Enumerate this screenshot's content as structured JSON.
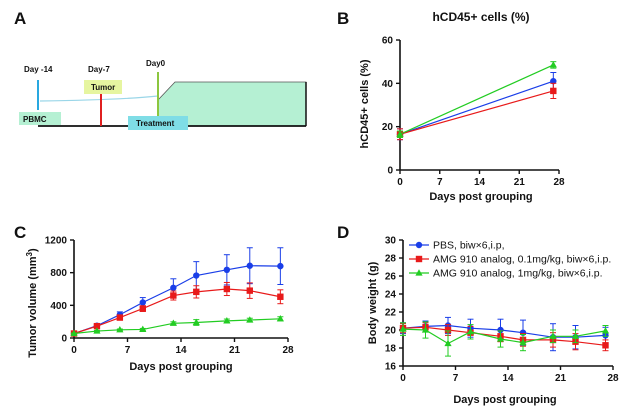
{
  "panels": {
    "a": "A",
    "b": "B",
    "c": "C",
    "d": "D"
  },
  "timeline": {
    "events": [
      {
        "label": "Day -14",
        "color": "#29a8e0"
      },
      {
        "label": "Day-7",
        "color": "#e02020"
      },
      {
        "label": "Day0",
        "color": "#8cc63f"
      }
    ],
    "boxes": [
      {
        "label": "PBMC",
        "color": "#b5f0d3"
      },
      {
        "label": "Tumor",
        "color": "#e6f5a0"
      },
      {
        "label": "Treatment",
        "color": "#7fdde6"
      }
    ],
    "tumor_area_color": "#b5f0d3"
  },
  "series_style": [
    {
      "color": "#1a3ee8",
      "marker": "circle"
    },
    {
      "color": "#e81a1a",
      "marker": "square"
    },
    {
      "color": "#22cc22",
      "marker": "triangle"
    }
  ],
  "chart_data": [
    {
      "id": "B",
      "type": "line",
      "title": "hCD45+ cells (%)",
      "xlabel": "Days post grouping",
      "ylabel": "hCD45+ cells (%)",
      "xlim": [
        0,
        28
      ],
      "ylim": [
        0,
        60
      ],
      "xticks": [
        0,
        7,
        14,
        21,
        28
      ],
      "yticks": [
        0,
        20,
        40,
        60
      ],
      "x": [
        0,
        27
      ],
      "series": [
        {
          "values": [
            16.5,
            41
          ],
          "errors": [
            2.5,
            4
          ]
        },
        {
          "values": [
            16.5,
            36.5
          ],
          "errors": [
            2.5,
            3.5
          ]
        },
        {
          "values": [
            16.5,
            48.5
          ],
          "errors": [
            1.5,
            1.5
          ]
        }
      ]
    },
    {
      "id": "C",
      "type": "line",
      "title": "",
      "xlabel": "Days post grouping",
      "ylabel": "Tumor volume (mm3)",
      "xlim": [
        0,
        28
      ],
      "ylim": [
        0,
        1200
      ],
      "xticks": [
        0,
        7,
        14,
        21,
        28
      ],
      "yticks": [
        0,
        400,
        800,
        1200
      ],
      "x": [
        0,
        3,
        6,
        9,
        13,
        16,
        20,
        23,
        27
      ],
      "series": [
        {
          "values": [
            55,
            150,
            285,
            435,
            615,
            765,
            835,
            885,
            880
          ],
          "errors": [
            10,
            20,
            35,
            60,
            110,
            170,
            185,
            220,
            225
          ]
        },
        {
          "values": [
            55,
            145,
            250,
            360,
            520,
            565,
            600,
            580,
            505
          ],
          "errors": [
            10,
            15,
            30,
            35,
            55,
            75,
            80,
            95,
            85
          ]
        },
        {
          "values": [
            55,
            85,
            100,
            105,
            180,
            190,
            210,
            220,
            235
          ],
          "errors": [
            5,
            8,
            10,
            12,
            18,
            35,
            22,
            22,
            25
          ]
        }
      ]
    },
    {
      "id": "D",
      "type": "line",
      "title": "",
      "xlabel": "Days post grouping",
      "ylabel": "Body weight (g)",
      "xlim": [
        0,
        28
      ],
      "ylim": [
        16,
        30
      ],
      "xticks": [
        0,
        7,
        14,
        21,
        28
      ],
      "yticks": [
        16,
        18,
        20,
        22,
        24,
        26,
        28,
        30
      ],
      "x": [
        0,
        3,
        6,
        9,
        13,
        16,
        20,
        23,
        27
      ],
      "series": [
        {
          "name": "PBS, biw×6,i.p,",
          "values": [
            20.2,
            20.4,
            20.5,
            20.2,
            20.0,
            19.7,
            19.2,
            19.2,
            19.4
          ],
          "errors": [
            0.6,
            0.6,
            0.9,
            1.0,
            1.2,
            1.4,
            1.5,
            1.3,
            0.9
          ]
        },
        {
          "name": "AMG 910 analog, 0.1mg/kg, biw×6,i.p.",
          "values": [
            20.2,
            20.3,
            20.0,
            19.7,
            19.3,
            18.9,
            18.9,
            18.7,
            18.3
          ],
          "errors": [
            0.5,
            0.5,
            0.6,
            0.7,
            0.6,
            0.7,
            0.8,
            0.9,
            0.6
          ]
        },
        {
          "name": "AMG 910 analog, 1mg/kg, biw×6,i.p.",
          "values": [
            20.1,
            20.0,
            18.5,
            19.8,
            19.0,
            18.6,
            19.3,
            19.3,
            19.9
          ],
          "errors": [
            0.7,
            0.9,
            1.4,
            0.8,
            0.9,
            0.9,
            0.7,
            0.7,
            0.6
          ]
        }
      ],
      "legend_position": "top"
    }
  ]
}
